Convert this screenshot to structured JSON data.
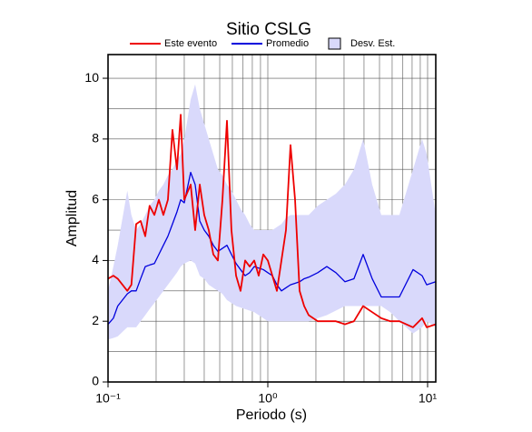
{
  "chart_data": {
    "type": "line",
    "title": "Sitio CSLG",
    "xlabel": "Periodo (s)",
    "ylabel": "Amplitud",
    "xscale": "log",
    "xlim": [
      0.1,
      11.25
    ],
    "ylim": [
      0,
      10.78
    ],
    "xticks": [
      {
        "value": 0.1,
        "label": "10⁻¹"
      },
      {
        "value": 1,
        "label": "10⁰"
      },
      {
        "value": 10,
        "label": "10¹"
      }
    ],
    "x_minor_ticks": [
      0.2,
      0.3,
      0.4,
      0.5,
      0.6,
      0.7,
      0.8,
      0.9,
      2,
      3,
      4,
      5,
      6,
      7,
      8,
      9
    ],
    "yticks": [
      0,
      2,
      4,
      6,
      8,
      10
    ],
    "y_minor_ticks": [
      1,
      3,
      5,
      7,
      9
    ],
    "grid": true,
    "legend": "top",
    "x": [
      0.1,
      0.108,
      0.115,
      0.132,
      0.14,
      0.15,
      0.16,
      0.171,
      0.182,
      0.195,
      0.208,
      0.222,
      0.237,
      0.253,
      0.27,
      0.285,
      0.3,
      0.329,
      0.351,
      0.375,
      0.4,
      0.427,
      0.456,
      0.487,
      0.52,
      0.555,
      0.592,
      0.633,
      0.675,
      0.721,
      0.77,
      0.822,
      0.877,
      0.937,
      1.0,
      1.068,
      1.14,
      1.217,
      1.299,
      1.387,
      1.481,
      1.581,
      1.688,
      1.802,
      2.054,
      2.34,
      2.667,
      3.04,
      3.46,
      3.95,
      4.5,
      5.13,
      5.84,
      6.66,
      8.11,
      9.24,
      9.87,
      11.25
    ],
    "series": [
      {
        "name": "Desv. Est.",
        "style": "band",
        "color": "#d9d9fb",
        "edge": "#000000",
        "lower": [
          1.4,
          1.45,
          1.5,
          1.8,
          1.8,
          1.8,
          2.0,
          2.2,
          2.4,
          2.6,
          2.8,
          3.0,
          3.2,
          3.4,
          3.6,
          3.8,
          3.9,
          4.0,
          3.9,
          3.5,
          3.4,
          3.2,
          3.1,
          3.0,
          2.9,
          2.7,
          2.6,
          2.5,
          2.45,
          2.4,
          2.35,
          2.3,
          2.2,
          2.1,
          2.0,
          2.0,
          2.0,
          2.0,
          2.0,
          2.0,
          2.0,
          2.0,
          2.0,
          2.0,
          2.1,
          2.2,
          2.35,
          2.5,
          2.5,
          2.5,
          2.5,
          2.5,
          2.3,
          2.0,
          1.6,
          1.8,
          2.0,
          1.8
        ],
        "upper": [
          3.0,
          3.8,
          4.5,
          6.3,
          5.5,
          5.0,
          5.2,
          5.5,
          5.8,
          6.0,
          6.3,
          6.5,
          6.8,
          7.0,
          7.3,
          7.5,
          8.0,
          9.3,
          9.8,
          9.0,
          8.5,
          8.0,
          7.5,
          7.0,
          6.8,
          6.5,
          6.3,
          6.0,
          5.7,
          5.5,
          5.2,
          5.0,
          5.0,
          5.0,
          5.0,
          5.0,
          5.1,
          5.2,
          5.4,
          5.5,
          5.5,
          5.5,
          5.5,
          5.5,
          5.8,
          6.0,
          6.2,
          6.5,
          7.0,
          8.0,
          6.5,
          5.5,
          5.5,
          5.5,
          7.0,
          8.0,
          7.5,
          5.5
        ]
      },
      {
        "name": "Promedio",
        "style": "line",
        "color": "#0000dd",
        "values": [
          1.9,
          2.1,
          2.5,
          2.9,
          3.0,
          3.0,
          3.4,
          3.8,
          3.85,
          3.9,
          4.2,
          4.5,
          4.8,
          5.2,
          5.6,
          6.0,
          5.9,
          6.9,
          6.5,
          5.3,
          5.0,
          4.8,
          4.5,
          4.3,
          4.4,
          4.5,
          4.2,
          3.9,
          3.7,
          3.5,
          3.6,
          3.8,
          3.75,
          3.7,
          3.6,
          3.5,
          3.2,
          3.0,
          3.1,
          3.2,
          3.25,
          3.3,
          3.4,
          3.45,
          3.6,
          3.8,
          3.6,
          3.3,
          3.4,
          4.2,
          3.4,
          2.8,
          2.8,
          2.8,
          3.7,
          3.5,
          3.2,
          3.3
        ]
      },
      {
        "name": "Este evento",
        "style": "line",
        "color": "#ee0000",
        "values": [
          3.4,
          3.5,
          3.4,
          3.0,
          3.2,
          5.2,
          5.3,
          4.8,
          5.8,
          5.5,
          6.0,
          5.5,
          6.0,
          8.3,
          7.0,
          8.8,
          6.0,
          6.5,
          5.0,
          6.5,
          5.5,
          5.0,
          4.2,
          4.0,
          6.0,
          8.6,
          5.0,
          3.5,
          3.0,
          4.0,
          3.8,
          4.0,
          3.5,
          4.2,
          4.0,
          3.5,
          3.0,
          4.0,
          5.0,
          7.8,
          6.0,
          3.0,
          2.5,
          2.2,
          2.0,
          2.0,
          2.0,
          1.9,
          2.0,
          2.5,
          2.3,
          2.1,
          2.0,
          2.0,
          1.8,
          2.1,
          1.8,
          1.9
        ]
      }
    ]
  }
}
